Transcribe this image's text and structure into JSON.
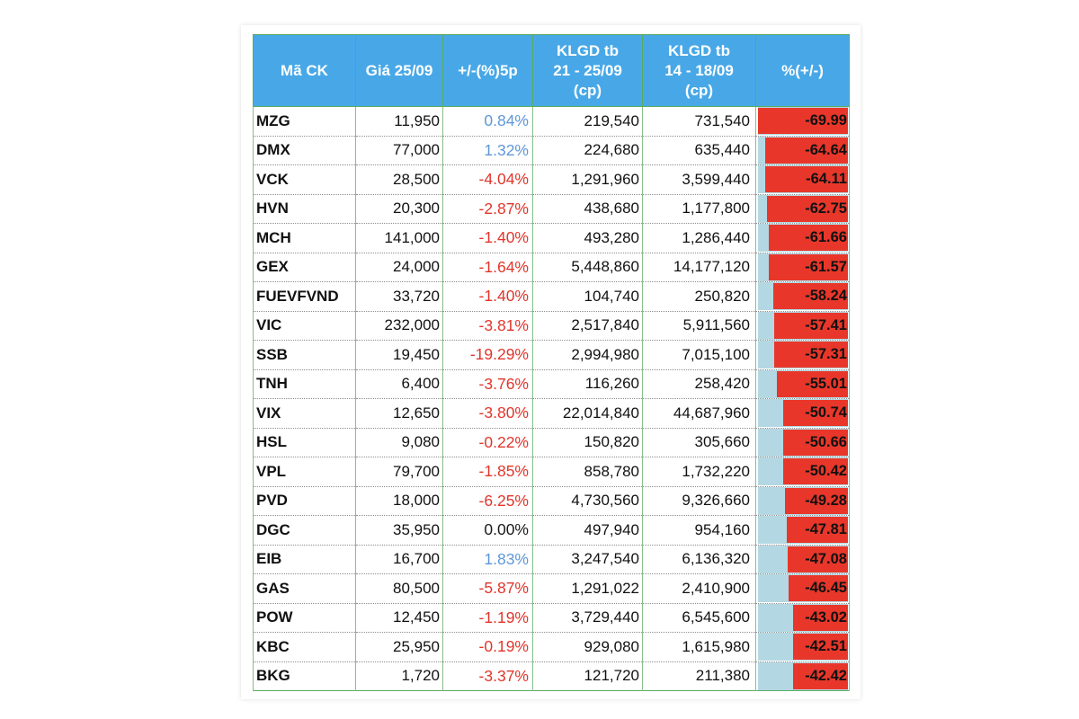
{
  "colors": {
    "header_bg": "#48a8e7",
    "header_text": "#ffffff",
    "grid_line": "#58ac60",
    "change_positive": "#5e97d8",
    "change_negative": "#e2352b",
    "change_neutral": "#1a1a1a",
    "bar_negative": "#e8372a",
    "bar_track": "#b4d8e3"
  },
  "chart_data": {
    "type": "table",
    "columns": [
      [
        "Mã CK"
      ],
      [
        "Giá 25/09"
      ],
      [
        "+/-(%)5p"
      ],
      [
        "KLGD tb",
        "21 - 25/09",
        "(cp)"
      ],
      [
        "KLGD tb",
        "14 - 18/09",
        "(cp)"
      ],
      [
        "%(+/-)"
      ]
    ],
    "rows": [
      {
        "ticker": "MZG",
        "price": "11,950",
        "change_5p": "0.84%",
        "avg_volume_21_25": "219,540",
        "avg_volume_14_18": "731,540",
        "pct_change": -69.99
      },
      {
        "ticker": "DMX",
        "price": "77,000",
        "change_5p": "1.32%",
        "avg_volume_21_25": "224,680",
        "avg_volume_14_18": "635,440",
        "pct_change": -64.64
      },
      {
        "ticker": "VCK",
        "price": "28,500",
        "change_5p": "-4.04%",
        "avg_volume_21_25": "1,291,960",
        "avg_volume_14_18": "3,599,440",
        "pct_change": -64.11
      },
      {
        "ticker": "HVN",
        "price": "20,300",
        "change_5p": "-2.87%",
        "avg_volume_21_25": "438,680",
        "avg_volume_14_18": "1,177,800",
        "pct_change": -62.75
      },
      {
        "ticker": "MCH",
        "price": "141,000",
        "change_5p": "-1.40%",
        "avg_volume_21_25": "493,280",
        "avg_volume_14_18": "1,286,440",
        "pct_change": -61.66
      },
      {
        "ticker": "GEX",
        "price": "24,000",
        "change_5p": "-1.64%",
        "avg_volume_21_25": "5,448,860",
        "avg_volume_14_18": "14,177,120",
        "pct_change": -61.57
      },
      {
        "ticker": "FUEVFVND",
        "price": "33,720",
        "change_5p": "-1.40%",
        "avg_volume_21_25": "104,740",
        "avg_volume_14_18": "250,820",
        "pct_change": -58.24
      },
      {
        "ticker": "VIC",
        "price": "232,000",
        "change_5p": "-3.81%",
        "avg_volume_21_25": "2,517,840",
        "avg_volume_14_18": "5,911,560",
        "pct_change": -57.41
      },
      {
        "ticker": "SSB",
        "price": "19,450",
        "change_5p": "-19.29%",
        "avg_volume_21_25": "2,994,980",
        "avg_volume_14_18": "7,015,100",
        "pct_change": -57.31
      },
      {
        "ticker": "TNH",
        "price": "6,400",
        "change_5p": "-3.76%",
        "avg_volume_21_25": "116,260",
        "avg_volume_14_18": "258,420",
        "pct_change": -55.01
      },
      {
        "ticker": "VIX",
        "price": "12,650",
        "change_5p": "-3.80%",
        "avg_volume_21_25": "22,014,840",
        "avg_volume_14_18": "44,687,960",
        "pct_change": -50.74
      },
      {
        "ticker": "HSL",
        "price": "9,080",
        "change_5p": "-0.22%",
        "avg_volume_21_25": "150,820",
        "avg_volume_14_18": "305,660",
        "pct_change": -50.66
      },
      {
        "ticker": "VPL",
        "price": "79,700",
        "change_5p": "-1.85%",
        "avg_volume_21_25": "858,780",
        "avg_volume_14_18": "1,732,220",
        "pct_change": -50.42
      },
      {
        "ticker": "PVD",
        "price": "18,000",
        "change_5p": "-6.25%",
        "avg_volume_21_25": "4,730,560",
        "avg_volume_14_18": "9,326,660",
        "pct_change": -49.28
      },
      {
        "ticker": "DGC",
        "price": "35,950",
        "change_5p": "0.00%",
        "avg_volume_21_25": "497,940",
        "avg_volume_14_18": "954,160",
        "pct_change": -47.81
      },
      {
        "ticker": "EIB",
        "price": "16,700",
        "change_5p": "1.83%",
        "avg_volume_21_25": "3,247,540",
        "avg_volume_14_18": "6,136,320",
        "pct_change": -47.08
      },
      {
        "ticker": "GAS",
        "price": "80,500",
        "change_5p": "-5.87%",
        "avg_volume_21_25": "1,291,022",
        "avg_volume_14_18": "2,410,900",
        "pct_change": -46.45
      },
      {
        "ticker": "POW",
        "price": "12,450",
        "change_5p": "-1.19%",
        "avg_volume_21_25": "3,729,440",
        "avg_volume_14_18": "6,545,600",
        "pct_change": -43.02
      },
      {
        "ticker": "KBC",
        "price": "25,950",
        "change_5p": "-0.19%",
        "avg_volume_21_25": "929,080",
        "avg_volume_14_18": "1,615,980",
        "pct_change": -42.51
      },
      {
        "ticker": "BKG",
        "price": "1,720",
        "change_5p": "-3.37%",
        "avg_volume_21_25": "121,720",
        "avg_volume_14_18": "211,380",
        "pct_change": -42.42
      }
    ]
  }
}
